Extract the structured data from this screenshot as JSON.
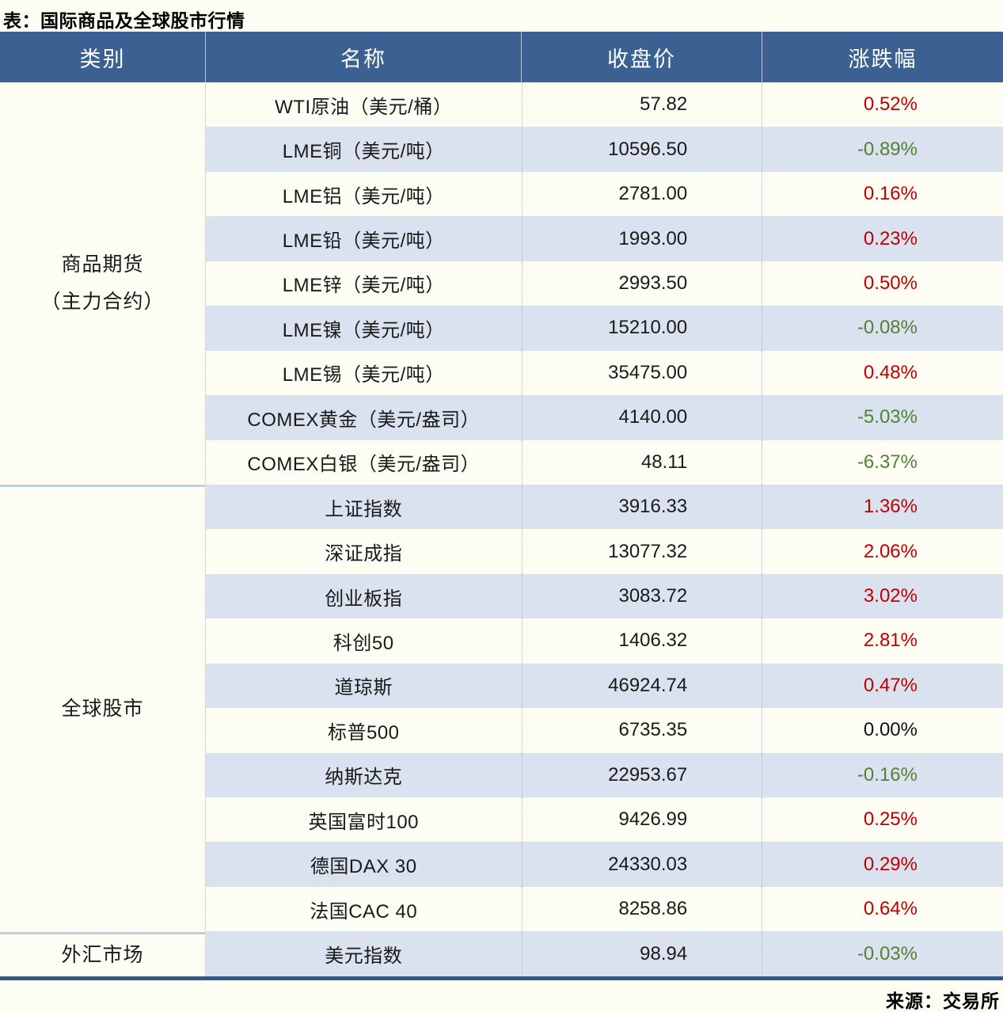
{
  "title": "表：国际商品及全球股市行情",
  "source": "来源：交易所",
  "columns": [
    "类别",
    "名称",
    "收盘价",
    "涨跌幅"
  ],
  "colors": {
    "header_bg": "#3a6191",
    "stripe": "#d9e2ee",
    "up_red": "#c00000",
    "down_green": "#538135",
    "deep_blue_border": "#2e5a8d"
  },
  "groups": [
    {
      "category_lines": [
        "商品期货",
        "（主力合约）"
      ],
      "rows": [
        {
          "name": "WTI原油（美元/桶）",
          "close": "57.82",
          "change": "0.52%",
          "direction": "up"
        },
        {
          "name": "LME铜（美元/吨）",
          "close": "10596.50",
          "change": "-0.89%",
          "direction": "down"
        },
        {
          "name": "LME铝（美元/吨）",
          "close": "2781.00",
          "change": "0.16%",
          "direction": "up"
        },
        {
          "name": "LME铅（美元/吨）",
          "close": "1993.00",
          "change": "0.23%",
          "direction": "up"
        },
        {
          "name": "LME锌（美元/吨）",
          "close": "2993.50",
          "change": "0.50%",
          "direction": "up"
        },
        {
          "name": "LME镍（美元/吨）",
          "close": "15210.00",
          "change": "-0.08%",
          "direction": "down"
        },
        {
          "name": "LME锡（美元/吨）",
          "close": "35475.00",
          "change": "0.48%",
          "direction": "up"
        },
        {
          "name": "COMEX黄金（美元/盎司）",
          "close": "4140.00",
          "change": "-5.03%",
          "direction": "down"
        },
        {
          "name": "COMEX白银（美元/盎司）",
          "close": "48.11",
          "change": "-6.37%",
          "direction": "down"
        }
      ]
    },
    {
      "category_lines": [
        "全球股市"
      ],
      "rows": [
        {
          "name": "上证指数",
          "close": "3916.33",
          "change": "1.36%",
          "direction": "up"
        },
        {
          "name": "深证成指",
          "close": "13077.32",
          "change": "2.06%",
          "direction": "up"
        },
        {
          "name": "创业板指",
          "close": "3083.72",
          "change": "3.02%",
          "direction": "up"
        },
        {
          "name": "科创50",
          "close": "1406.32",
          "change": "2.81%",
          "direction": "up"
        },
        {
          "name": "道琼斯",
          "close": "46924.74",
          "change": "0.47%",
          "direction": "up"
        },
        {
          "name": "标普500",
          "close": "6735.35",
          "change": "0.00%",
          "direction": "flat"
        },
        {
          "name": "纳斯达克",
          "close": "22953.67",
          "change": "-0.16%",
          "direction": "down"
        },
        {
          "name": "英国富时100",
          "close": "9426.99",
          "change": "0.25%",
          "direction": "up"
        },
        {
          "name": "德国DAX 30",
          "close": "24330.03",
          "change": "0.29%",
          "direction": "up"
        },
        {
          "name": "法国CAC 40",
          "close": "8258.86",
          "change": "0.64%",
          "direction": "up"
        }
      ]
    },
    {
      "category_lines": [
        "外汇市场"
      ],
      "rows": [
        {
          "name": "美元指数",
          "close": "98.94",
          "change": "-0.03%",
          "direction": "down"
        }
      ]
    }
  ]
}
